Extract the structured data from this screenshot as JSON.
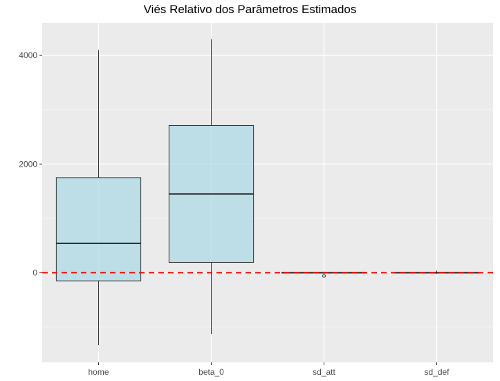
{
  "chart_data": {
    "type": "boxplot",
    "title": "Viés Relativo dos Parâmetros Estimados",
    "xlabel": "",
    "ylabel": "",
    "categories": [
      "home",
      "beta_0",
      "sd_att",
      "sd_def"
    ],
    "boxes": [
      {
        "name": "home",
        "whisker_low": -1330,
        "q1": -150,
        "median": 540,
        "q3": 1750,
        "whisker_high": 4100,
        "outliers": []
      },
      {
        "name": "beta_0",
        "whisker_low": -1130,
        "q1": 190,
        "median": 1450,
        "q3": 2710,
        "whisker_high": 4300,
        "outliers": []
      },
      {
        "name": "sd_att",
        "whisker_low": -20,
        "q1": -5,
        "median": 0,
        "q3": 5,
        "whisker_high": 20,
        "outliers": [
          -60
        ]
      },
      {
        "name": "sd_def",
        "whisker_low": -20,
        "q1": -5,
        "median": 0,
        "q3": 5,
        "whisker_high": 40,
        "outliers": []
      }
    ],
    "yticks": [
      0,
      2000,
      4000
    ],
    "ylim": [
      -1650,
      4600
    ],
    "reference_line": {
      "y": 0,
      "style": "dashed",
      "color": "#ff0000"
    },
    "box_fill": "#add8e6",
    "panel_background": "#ebebeb",
    "grid": true,
    "legend": "none"
  }
}
